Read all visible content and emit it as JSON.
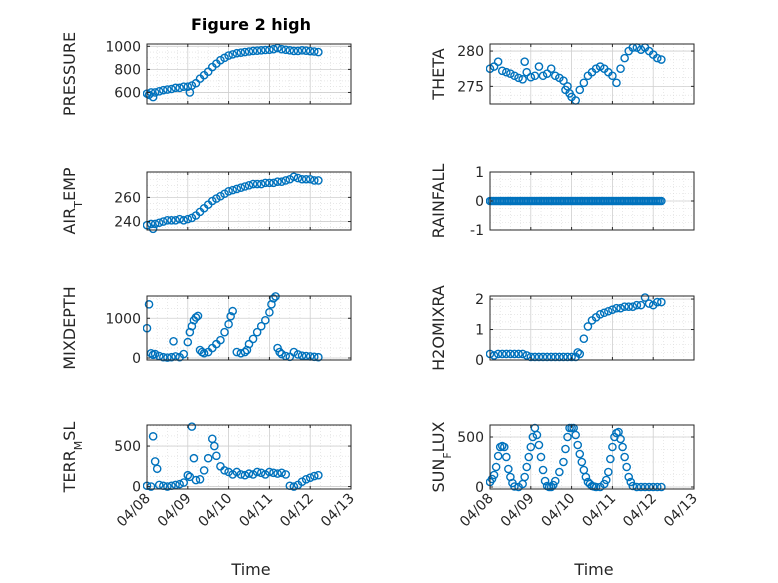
{
  "chart_data": {
    "type": "scatter",
    "title": "Figure 2 high",
    "marker_color": "#0072BD",
    "grid": true,
    "date_ticks": [
      "04/08",
      "04/09",
      "04/10",
      "04/11",
      "04/12",
      "04/13"
    ],
    "xlabel": "Time",
    "panels": [
      {
        "id": "pressure",
        "ylabel": "PRESSURE",
        "ylim": [
          500,
          1020
        ],
        "yticks": [
          600,
          800,
          1000
        ],
        "yticklabels": [
          "600",
          "800",
          "1000"
        ],
        "x": [
          0,
          0.05,
          0.1,
          0.15,
          0.2,
          0.3,
          0.4,
          0.5,
          0.6,
          0.7,
          0.8,
          0.9,
          1.0,
          1.05,
          1.1,
          1.2,
          1.3,
          1.4,
          1.5,
          1.6,
          1.7,
          1.8,
          1.9,
          2.0,
          2.1,
          2.2,
          2.3,
          2.4,
          2.5,
          2.6,
          2.7,
          2.8,
          2.9,
          3.0,
          3.1,
          3.2,
          3.3,
          3.4,
          3.5,
          3.6,
          3.7,
          3.8,
          3.9,
          4.0,
          4.1,
          4.2
        ],
        "y": [
          590,
          580,
          600,
          560,
          600,
          610,
          620,
          625,
          630,
          640,
          640,
          650,
          650,
          600,
          660,
          680,
          720,
          750,
          780,
          820,
          850,
          880,
          900,
          920,
          930,
          940,
          945,
          950,
          955,
          960,
          962,
          965,
          968,
          970,
          975,
          985,
          975,
          970,
          965,
          960,
          960,
          965,
          962,
          958,
          955,
          950
        ]
      },
      {
        "id": "theta",
        "ylabel": "THETA",
        "ylim": [
          272.5,
          281
        ],
        "yticks": [
          275,
          280
        ],
        "yticklabels": [
          "275",
          "280"
        ],
        "x": [
          0,
          0.1,
          0.2,
          0.3,
          0.4,
          0.5,
          0.6,
          0.7,
          0.8,
          0.85,
          0.9,
          1.0,
          1.1,
          1.2,
          1.3,
          1.4,
          1.5,
          1.6,
          1.7,
          1.8,
          1.85,
          1.9,
          1.95,
          2.0,
          2.1,
          2.2,
          2.3,
          2.4,
          2.5,
          2.6,
          2.7,
          2.8,
          2.9,
          3.0,
          3.1,
          3.2,
          3.3,
          3.4,
          3.5,
          3.6,
          3.7,
          3.8,
          3.9,
          4.0,
          4.1,
          4.2
        ],
        "y": [
          277.5,
          277.8,
          278.5,
          277.2,
          277.0,
          276.8,
          276.5,
          276.2,
          276.0,
          278.5,
          277.0,
          276.3,
          276.5,
          277.8,
          276.5,
          276.8,
          277.5,
          276.5,
          276.2,
          275.8,
          274.5,
          275.0,
          274.0,
          273.5,
          273.0,
          274.5,
          275.5,
          276.5,
          277.0,
          277.5,
          277.8,
          277.5,
          277.0,
          276.5,
          275.5,
          277.5,
          279.0,
          280.0,
          280.5,
          280.5,
          280.2,
          280.5,
          280.0,
          279.5,
          279.0,
          278.8
        ]
      },
      {
        "id": "air_temp",
        "ylabel": "AIR",
        "ylabel_sub": "T",
        "ylabel_rest": "EMP",
        "ylim": [
          233,
          281
        ],
        "yticks": [
          240,
          260
        ],
        "yticklabels": [
          "240",
          "260"
        ],
        "x": [
          0,
          0.1,
          0.15,
          0.2,
          0.3,
          0.4,
          0.5,
          0.6,
          0.7,
          0.8,
          0.9,
          1.0,
          1.1,
          1.2,
          1.3,
          1.4,
          1.5,
          1.6,
          1.7,
          1.8,
          1.9,
          2.0,
          2.1,
          2.2,
          2.3,
          2.4,
          2.5,
          2.6,
          2.7,
          2.8,
          2.9,
          3.0,
          3.1,
          3.2,
          3.3,
          3.4,
          3.5,
          3.6,
          3.7,
          3.8,
          3.9,
          4.0,
          4.1,
          4.2
        ],
        "y": [
          237,
          238,
          234,
          238,
          239,
          240,
          241,
          241,
          241,
          242,
          241,
          242,
          243,
          245,
          248,
          251,
          254,
          257,
          259,
          261,
          263,
          265,
          266,
          267,
          268,
          269,
          270,
          271,
          271,
          271,
          272,
          272,
          272,
          273,
          273,
          274,
          275,
          277,
          276,
          275,
          275,
          275,
          274,
          274
        ]
      },
      {
        "id": "rainfall",
        "ylabel": "RAINFALL",
        "ylim": [
          -1,
          1
        ],
        "yticks": [
          -1,
          0,
          1
        ],
        "yticklabels": [
          "-1",
          "0",
          "1"
        ],
        "x_range": [
          0,
          4.2
        ],
        "x_step": 0.042,
        "y_const": 0
      },
      {
        "id": "mixdepth",
        "ylabel": "MIXDEPTH",
        "ylim": [
          -50,
          1560
        ],
        "yticks": [
          0,
          1000
        ],
        "yticklabels": [
          "0",
          "1000"
        ],
        "x": [
          0,
          0.05,
          0.1,
          0.15,
          0.2,
          0.3,
          0.4,
          0.5,
          0.6,
          0.65,
          0.7,
          0.8,
          0.9,
          1.0,
          1.05,
          1.1,
          1.15,
          1.2,
          1.25,
          1.3,
          1.35,
          1.4,
          1.5,
          1.6,
          1.7,
          1.8,
          1.9,
          2.0,
          2.05,
          2.1,
          2.2,
          2.3,
          2.4,
          2.45,
          2.5,
          2.6,
          2.7,
          2.8,
          2.9,
          3.0,
          3.05,
          3.1,
          3.15,
          3.2,
          3.25,
          3.3,
          3.4,
          3.5,
          3.6,
          3.7,
          3.8,
          3.9,
          4.0,
          4.1,
          4.2
        ],
        "y": [
          750,
          1350,
          120,
          80,
          100,
          50,
          20,
          10,
          20,
          420,
          40,
          20,
          100,
          400,
          650,
          800,
          950,
          1020,
          1060,
          200,
          150,
          120,
          150,
          250,
          350,
          450,
          650,
          850,
          1050,
          1180,
          150,
          120,
          150,
          200,
          350,
          480,
          650,
          800,
          950,
          1150,
          1350,
          1500,
          1550,
          250,
          150,
          100,
          50,
          30,
          150,
          90,
          60,
          50,
          40,
          30,
          20
        ]
      },
      {
        "id": "h2omixra",
        "ylabel": "H2OMIXRA",
        "ylim": [
          0,
          2.1
        ],
        "yticks": [
          0,
          1,
          2
        ],
        "yticklabels": [
          "0",
          "1",
          "2"
        ],
        "x": [
          0,
          0.1,
          0.2,
          0.3,
          0.4,
          0.5,
          0.6,
          0.7,
          0.8,
          0.9,
          1.0,
          1.1,
          1.2,
          1.3,
          1.4,
          1.5,
          1.6,
          1.7,
          1.8,
          1.9,
          2.0,
          2.1,
          2.15,
          2.2,
          2.3,
          2.4,
          2.5,
          2.6,
          2.7,
          2.8,
          2.9,
          3.0,
          3.1,
          3.2,
          3.3,
          3.4,
          3.5,
          3.6,
          3.7,
          3.8,
          3.9,
          4.0,
          4.1,
          4.2
        ],
        "y": [
          0.2,
          0.15,
          0.2,
          0.2,
          0.2,
          0.2,
          0.2,
          0.2,
          0.2,
          0.15,
          0.1,
          0.1,
          0.1,
          0.1,
          0.1,
          0.1,
          0.1,
          0.1,
          0.1,
          0.1,
          0.1,
          0.1,
          0.25,
          0.2,
          0.7,
          1.1,
          1.3,
          1.4,
          1.5,
          1.55,
          1.6,
          1.65,
          1.7,
          1.7,
          1.75,
          1.75,
          1.75,
          1.8,
          1.8,
          2.05,
          1.85,
          1.8,
          1.9,
          1.9
        ]
      },
      {
        "id": "terr_msl",
        "ylabel": "TERR",
        "ylabel_sub": "M",
        "ylabel_rest": "SL",
        "ylim": [
          -30,
          760
        ],
        "yticks": [
          0,
          500
        ],
        "yticklabels": [
          "0",
          "500"
        ],
        "x": [
          0,
          0.1,
          0.15,
          0.2,
          0.25,
          0.3,
          0.4,
          0.5,
          0.6,
          0.7,
          0.8,
          0.9,
          1.0,
          1.05,
          1.1,
          1.15,
          1.2,
          1.3,
          1.4,
          1.5,
          1.6,
          1.65,
          1.7,
          1.8,
          1.9,
          2.0,
          2.1,
          2.2,
          2.3,
          2.4,
          2.5,
          2.6,
          2.7,
          2.8,
          2.9,
          3.0,
          3.1,
          3.2,
          3.3,
          3.4,
          3.5,
          3.6,
          3.7,
          3.8,
          3.9,
          4.0,
          4.1,
          4.2
        ],
        "y": [
          10,
          0,
          620,
          310,
          220,
          20,
          10,
          0,
          10,
          20,
          30,
          50,
          140,
          120,
          740,
          350,
          80,
          90,
          200,
          350,
          590,
          500,
          380,
          250,
          200,
          180,
          150,
          180,
          150,
          140,
          160,
          150,
          180,
          170,
          150,
          180,
          170,
          160,
          170,
          150,
          10,
          0,
          20,
          60,
          90,
          110,
          130,
          140
        ]
      },
      {
        "id": "sun_flux",
        "ylabel": "SUN",
        "ylabel_sub": "F",
        "ylabel_rest": "LUX",
        "ylim": [
          -20,
          620
        ],
        "yticks": [
          0,
          500
        ],
        "yticklabels": [
          "0",
          "500"
        ],
        "x": [
          0,
          0.05,
          0.1,
          0.15,
          0.2,
          0.25,
          0.3,
          0.35,
          0.4,
          0.45,
          0.5,
          0.55,
          0.6,
          0.7,
          0.8,
          0.85,
          0.9,
          0.95,
          1.0,
          1.05,
          1.1,
          1.15,
          1.2,
          1.25,
          1.3,
          1.35,
          1.4,
          1.45,
          1.5,
          1.55,
          1.6,
          1.7,
          1.8,
          1.85,
          1.9,
          1.95,
          2.0,
          2.05,
          2.1,
          2.15,
          2.2,
          2.25,
          2.3,
          2.35,
          2.4,
          2.45,
          2.5,
          2.55,
          2.6,
          2.7,
          2.8,
          2.85,
          2.9,
          2.95,
          3.0,
          3.05,
          3.1,
          3.15,
          3.2,
          3.25,
          3.3,
          3.35,
          3.4,
          3.45,
          3.5,
          3.6,
          3.7,
          3.8,
          3.9,
          4.0,
          4.1,
          4.2
        ],
        "y": [
          50,
          80,
          120,
          200,
          310,
          400,
          410,
          400,
          300,
          180,
          100,
          40,
          5,
          0,
          30,
          100,
          200,
          300,
          400,
          500,
          590,
          520,
          420,
          300,
          170,
          60,
          10,
          0,
          0,
          20,
          60,
          150,
          250,
          380,
          500,
          590,
          590,
          590,
          520,
          420,
          330,
          250,
          170,
          100,
          50,
          30,
          10,
          5,
          0,
          0,
          30,
          70,
          150,
          280,
          400,
          500,
          540,
          550,
          480,
          400,
          300,
          200,
          100,
          50,
          10,
          0,
          0,
          0,
          0,
          0,
          0,
          0
        ]
      }
    ]
  }
}
